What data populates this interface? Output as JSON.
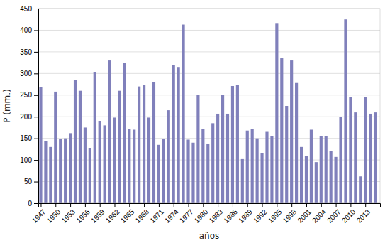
{
  "chart_data": {
    "type": "bar",
    "xlabel": "años",
    "ylabel": "P (mm.)",
    "x": [
      1947,
      1948,
      1949,
      1950,
      1951,
      1952,
      1953,
      1954,
      1955,
      1956,
      1957,
      1958,
      1959,
      1960,
      1961,
      1962,
      1963,
      1964,
      1965,
      1966,
      1967,
      1968,
      1969,
      1970,
      1971,
      1972,
      1973,
      1974,
      1975,
      1976,
      1977,
      1978,
      1979,
      1980,
      1981,
      1982,
      1983,
      1984,
      1985,
      1986,
      1987,
      1988,
      1989,
      1990,
      1991,
      1992,
      1993,
      1994,
      1995,
      1996,
      1997,
      1998,
      1999,
      2000,
      2001,
      2002,
      2003,
      2004,
      2005,
      2006,
      2007,
      2008,
      2009,
      2010,
      2011,
      2012,
      2013,
      2014,
      2015
    ],
    "values": [
      268,
      143,
      130,
      258,
      148,
      150,
      162,
      285,
      260,
      175,
      127,
      303,
      190,
      180,
      330,
      198,
      260,
      325,
      172,
      170,
      270,
      274,
      198,
      280,
      135,
      148,
      215,
      320,
      315,
      413,
      147,
      140,
      250,
      172,
      138,
      185,
      207,
      250,
      207,
      271,
      274,
      102,
      168,
      172,
      150,
      115,
      165,
      155,
      415,
      335,
      225,
      330,
      278,
      130,
      109,
      170,
      95,
      155,
      155,
      120,
      107,
      200,
      425,
      245,
      210,
      62,
      245,
      207,
      210
    ],
    "color": "#8080bb",
    "xlim": [
      1946.5,
      2016.0
    ],
    "xticks": [
      1947,
      1950,
      1953,
      1956,
      1959,
      1962,
      1965,
      1968,
      1971,
      1974,
      1977,
      1980,
      1983,
      1986,
      1989,
      1992,
      1995,
      1998,
      2001,
      2004,
      2007,
      2010,
      2013
    ],
    "ylim": [
      0,
      450
    ],
    "yticks": [
      0,
      50,
      100,
      150,
      200,
      250,
      300,
      350,
      400,
      450
    ],
    "grid": true
  }
}
